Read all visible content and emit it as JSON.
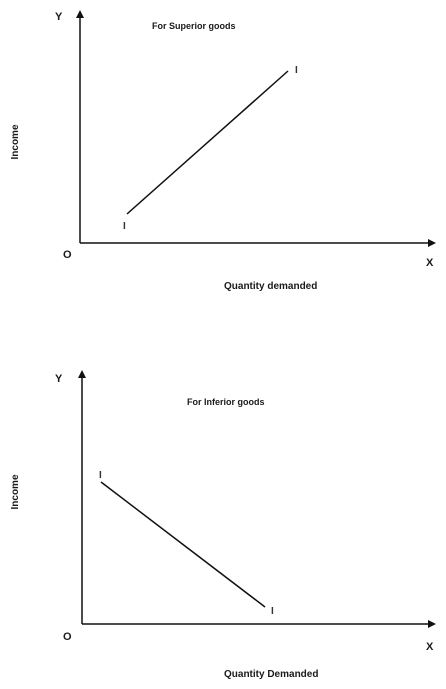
{
  "diagrams": [
    {
      "title": "For Superior goods",
      "y_axis_letter": "Y",
      "x_axis_letter": "X",
      "origin_label": "O",
      "ylabel": "Income",
      "xlabel": "Quantity demanded",
      "start_label": "I",
      "end_label": "I",
      "slope": "positive"
    },
    {
      "title": "For Inferior goods",
      "y_axis_letter": "Y",
      "x_axis_letter": "X",
      "origin_label": "O",
      "ylabel": "Income",
      "xlabel": "Quantity Demanded",
      "start_label": "I",
      "end_label": "I",
      "slope": "negative"
    }
  ]
}
